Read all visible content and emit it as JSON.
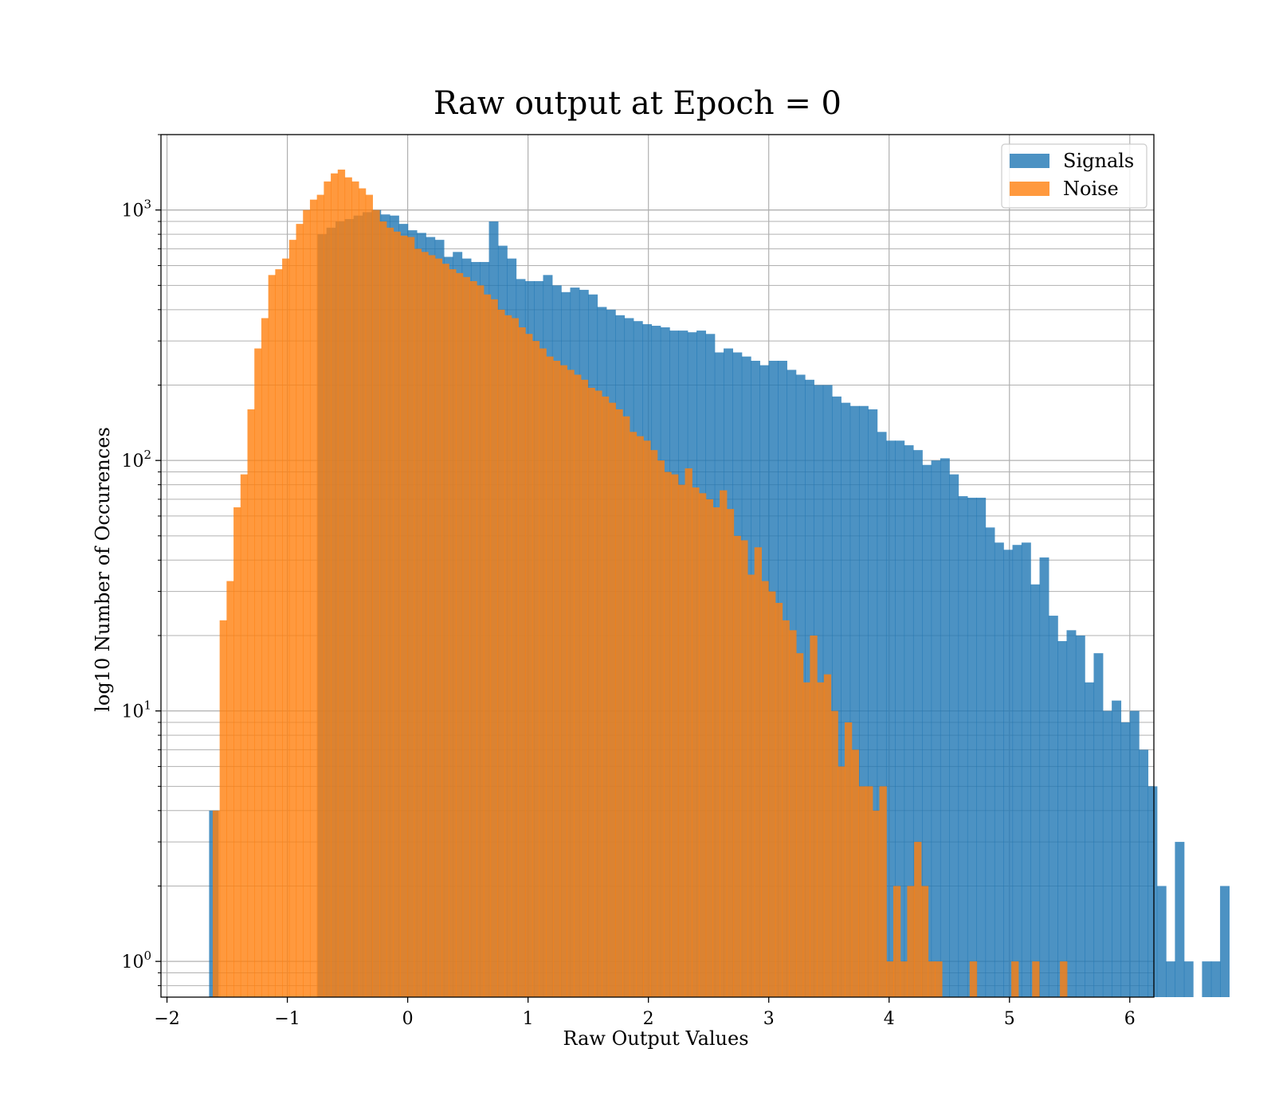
{
  "chart_data": {
    "type": "histogram",
    "title": "Raw output at Epoch = 0",
    "xlabel": "Raw Output Values",
    "ylabel": "log10 Number of Occurences",
    "xlim": [
      -2.05,
      6.2
    ],
    "ylim": [
      0.72,
      2000
    ],
    "yscale": "log",
    "grid": true,
    "legend_position": "top-right",
    "x_ticks": [
      -2,
      -1,
      0,
      1,
      2,
      3,
      4,
      5,
      6
    ],
    "x_tick_labels": [
      "−2",
      "−1",
      "0",
      "1",
      "2",
      "3",
      "4",
      "5",
      "6"
    ],
    "y_ticks": [
      {
        "value": 1,
        "base": "10",
        "exp": "0"
      },
      {
        "value": 10,
        "base": "10",
        "exp": "1"
      },
      {
        "value": 100,
        "base": "10",
        "exp": "2"
      },
      {
        "value": 1000,
        "base": "10",
        "exp": "3"
      }
    ],
    "series": [
      {
        "name": "Signals",
        "color": "#1f77b4",
        "opacity": 0.8,
        "bin_start": -1.65,
        "bin_width": 0.075,
        "counts": [
          4,
          0,
          0,
          0,
          0,
          0,
          0,
          0,
          0,
          0,
          0,
          0,
          800,
          850,
          900,
          920,
          950,
          980,
          1000,
          960,
          950,
          880,
          830,
          810,
          780,
          760,
          650,
          680,
          640,
          620,
          620,
          900,
          720,
          640,
          530,
          520,
          520,
          550,
          500,
          470,
          490,
          480,
          460,
          410,
          400,
          380,
          370,
          360,
          350,
          345,
          340,
          330,
          330,
          325,
          330,
          320,
          270,
          280,
          270,
          260,
          250,
          240,
          250,
          250,
          230,
          220,
          210,
          200,
          200,
          180,
          170,
          165,
          165,
          160,
          130,
          120,
          120,
          115,
          110,
          96,
          100,
          102,
          88,
          72,
          71,
          71,
          54,
          47,
          44,
          46,
          47,
          32,
          41,
          24,
          19,
          21,
          20,
          13,
          17,
          10,
          11,
          9,
          10,
          7,
          5,
          2,
          1,
          3,
          1,
          0,
          1,
          1,
          2
        ]
      },
      {
        "name": "Noise",
        "color": "#ff7f0e",
        "opacity": 0.8,
        "bin_start": -1.62,
        "bin_width": 0.0577,
        "counts": [
          4,
          23,
          33,
          65,
          88,
          160,
          280,
          370,
          550,
          580,
          640,
          760,
          880,
          1000,
          1100,
          1150,
          1300,
          1400,
          1450,
          1350,
          1300,
          1220,
          1150,
          1000,
          900,
          850,
          820,
          790,
          780,
          700,
          680,
          660,
          640,
          610,
          580,
          560,
          540,
          520,
          500,
          460,
          440,
          400,
          380,
          370,
          340,
          320,
          300,
          280,
          260,
          250,
          240,
          230,
          220,
          210,
          195,
          190,
          180,
          170,
          160,
          150,
          130,
          125,
          120,
          110,
          100,
          90,
          88,
          80,
          93,
          78,
          74,
          70,
          65,
          76,
          64,
          50,
          48,
          35,
          45,
          33,
          30,
          27,
          23,
          21,
          17,
          13,
          20,
          13,
          14,
          10,
          6,
          9,
          7,
          5,
          5,
          4,
          5,
          1,
          2,
          1,
          2,
          3,
          2,
          1,
          1,
          0,
          0,
          0,
          0,
          1,
          0,
          0,
          0,
          0,
          0,
          1,
          0,
          0,
          1,
          0,
          0,
          0,
          1
        ]
      }
    ]
  }
}
